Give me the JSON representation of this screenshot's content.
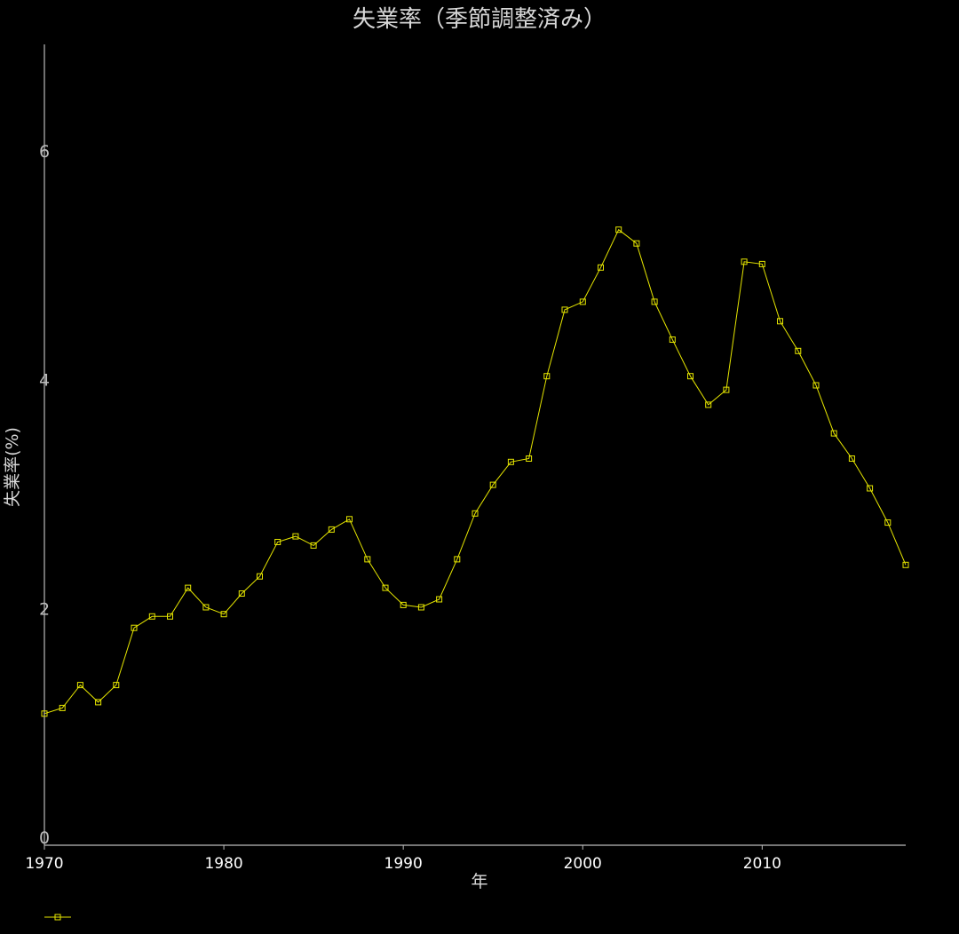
{
  "chart_data": {
    "type": "line",
    "title": "失業率（季節調整済み）",
    "xlabel": "年",
    "ylabel": "失業率(%)",
    "xlim": [
      1970,
      2018
    ],
    "ylim": [
      0,
      7
    ],
    "x_ticks": [
      "1970",
      "1980",
      "1990",
      "2000",
      "2010"
    ],
    "y_ticks": [
      "0",
      "2",
      "4",
      "6"
    ],
    "grid": false,
    "legend": "bottom-left",
    "series": [
      {
        "color": "#e6e600",
        "marker": "square",
        "x": [
          1970,
          1971,
          1972,
          1973,
          1974,
          1975,
          1976,
          1977,
          1978,
          1979,
          1980,
          1981,
          1982,
          1983,
          1984,
          1985,
          1986,
          1987,
          1988,
          1989,
          1990,
          1991,
          1992,
          1993,
          1994,
          1995,
          1996,
          1997,
          1998,
          1999,
          2000,
          2001,
          2002,
          2003,
          2004,
          2005,
          2006,
          2007,
          2008,
          2009,
          2010,
          2011,
          2012,
          2013,
          2014,
          2015,
          2016,
          2017,
          2018
        ],
        "values": [
          1.15,
          1.2,
          1.4,
          1.25,
          1.4,
          1.9,
          2.0,
          2.0,
          2.25,
          2.08,
          2.02,
          2.2,
          2.35,
          2.65,
          2.7,
          2.62,
          2.76,
          2.85,
          2.5,
          2.25,
          2.1,
          2.08,
          2.15,
          2.5,
          2.9,
          3.15,
          3.35,
          3.38,
          4.1,
          4.68,
          4.75,
          5.05,
          5.38,
          5.26,
          4.75,
          4.42,
          4.1,
          3.85,
          3.98,
          5.1,
          5.08,
          4.58,
          4.32,
          4.02,
          3.6,
          3.38,
          3.12,
          2.82,
          2.45
        ]
      }
    ]
  }
}
